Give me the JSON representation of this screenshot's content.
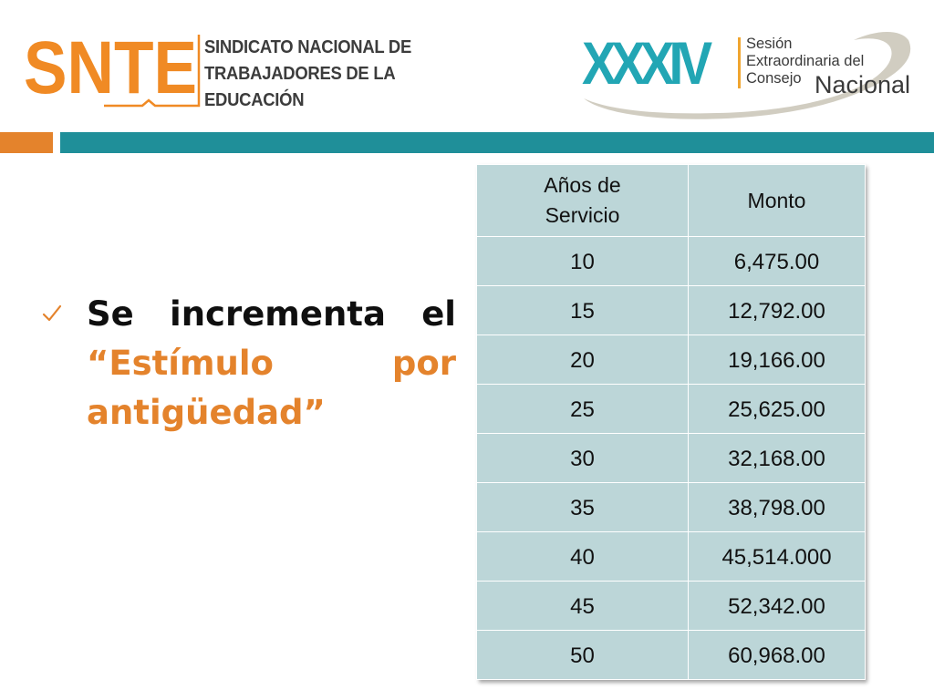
{
  "header": {
    "snte_logo": {
      "mark_text": "SNTE",
      "lines": [
        "SINDICATO NACIONAL DE",
        "TRABAJADORES DE LA",
        "EDUCACIÓN"
      ],
      "colors": {
        "mark": "#f08a24",
        "text": "#3c3c3c"
      }
    },
    "session_logo": {
      "number": "XXXIV",
      "line1": "Sesión",
      "line2": "Extraordinaria del",
      "line3": "Consejo",
      "line4": "Nacional",
      "colors": {
        "number": "#22a6b4",
        "swoosh": "#c9c4b6",
        "bar": "#f0a530"
      }
    },
    "stripe_colors": {
      "left": "#e4832c",
      "right": "#1f8f99"
    }
  },
  "bullet": {
    "icon": "check-icon",
    "plain_text": "Se incrementa el",
    "highlight_text": "“Estímulo por antigüedad”",
    "colors": {
      "plain": "#0f0f0f",
      "highlight": "#e4832c"
    }
  },
  "table": {
    "headers": [
      "Años de Servicio",
      "Monto"
    ],
    "rows": [
      {
        "years": "10",
        "amount": "6,475.00"
      },
      {
        "years": "15",
        "amount": "12,792.00"
      },
      {
        "years": "20",
        "amount": "19,166.00"
      },
      {
        "years": "25",
        "amount": "25,625.00"
      },
      {
        "years": "30",
        "amount": "32,168.00"
      },
      {
        "years": "35",
        "amount": "38,798.00"
      },
      {
        "years": "40",
        "amount": "45,514.000"
      },
      {
        "years": "45",
        "amount": "52,342.00"
      },
      {
        "years": "50",
        "amount": "60,968.00"
      }
    ],
    "colors": {
      "cell_bg": "#bcd6d8",
      "border": "#ffffff"
    }
  }
}
